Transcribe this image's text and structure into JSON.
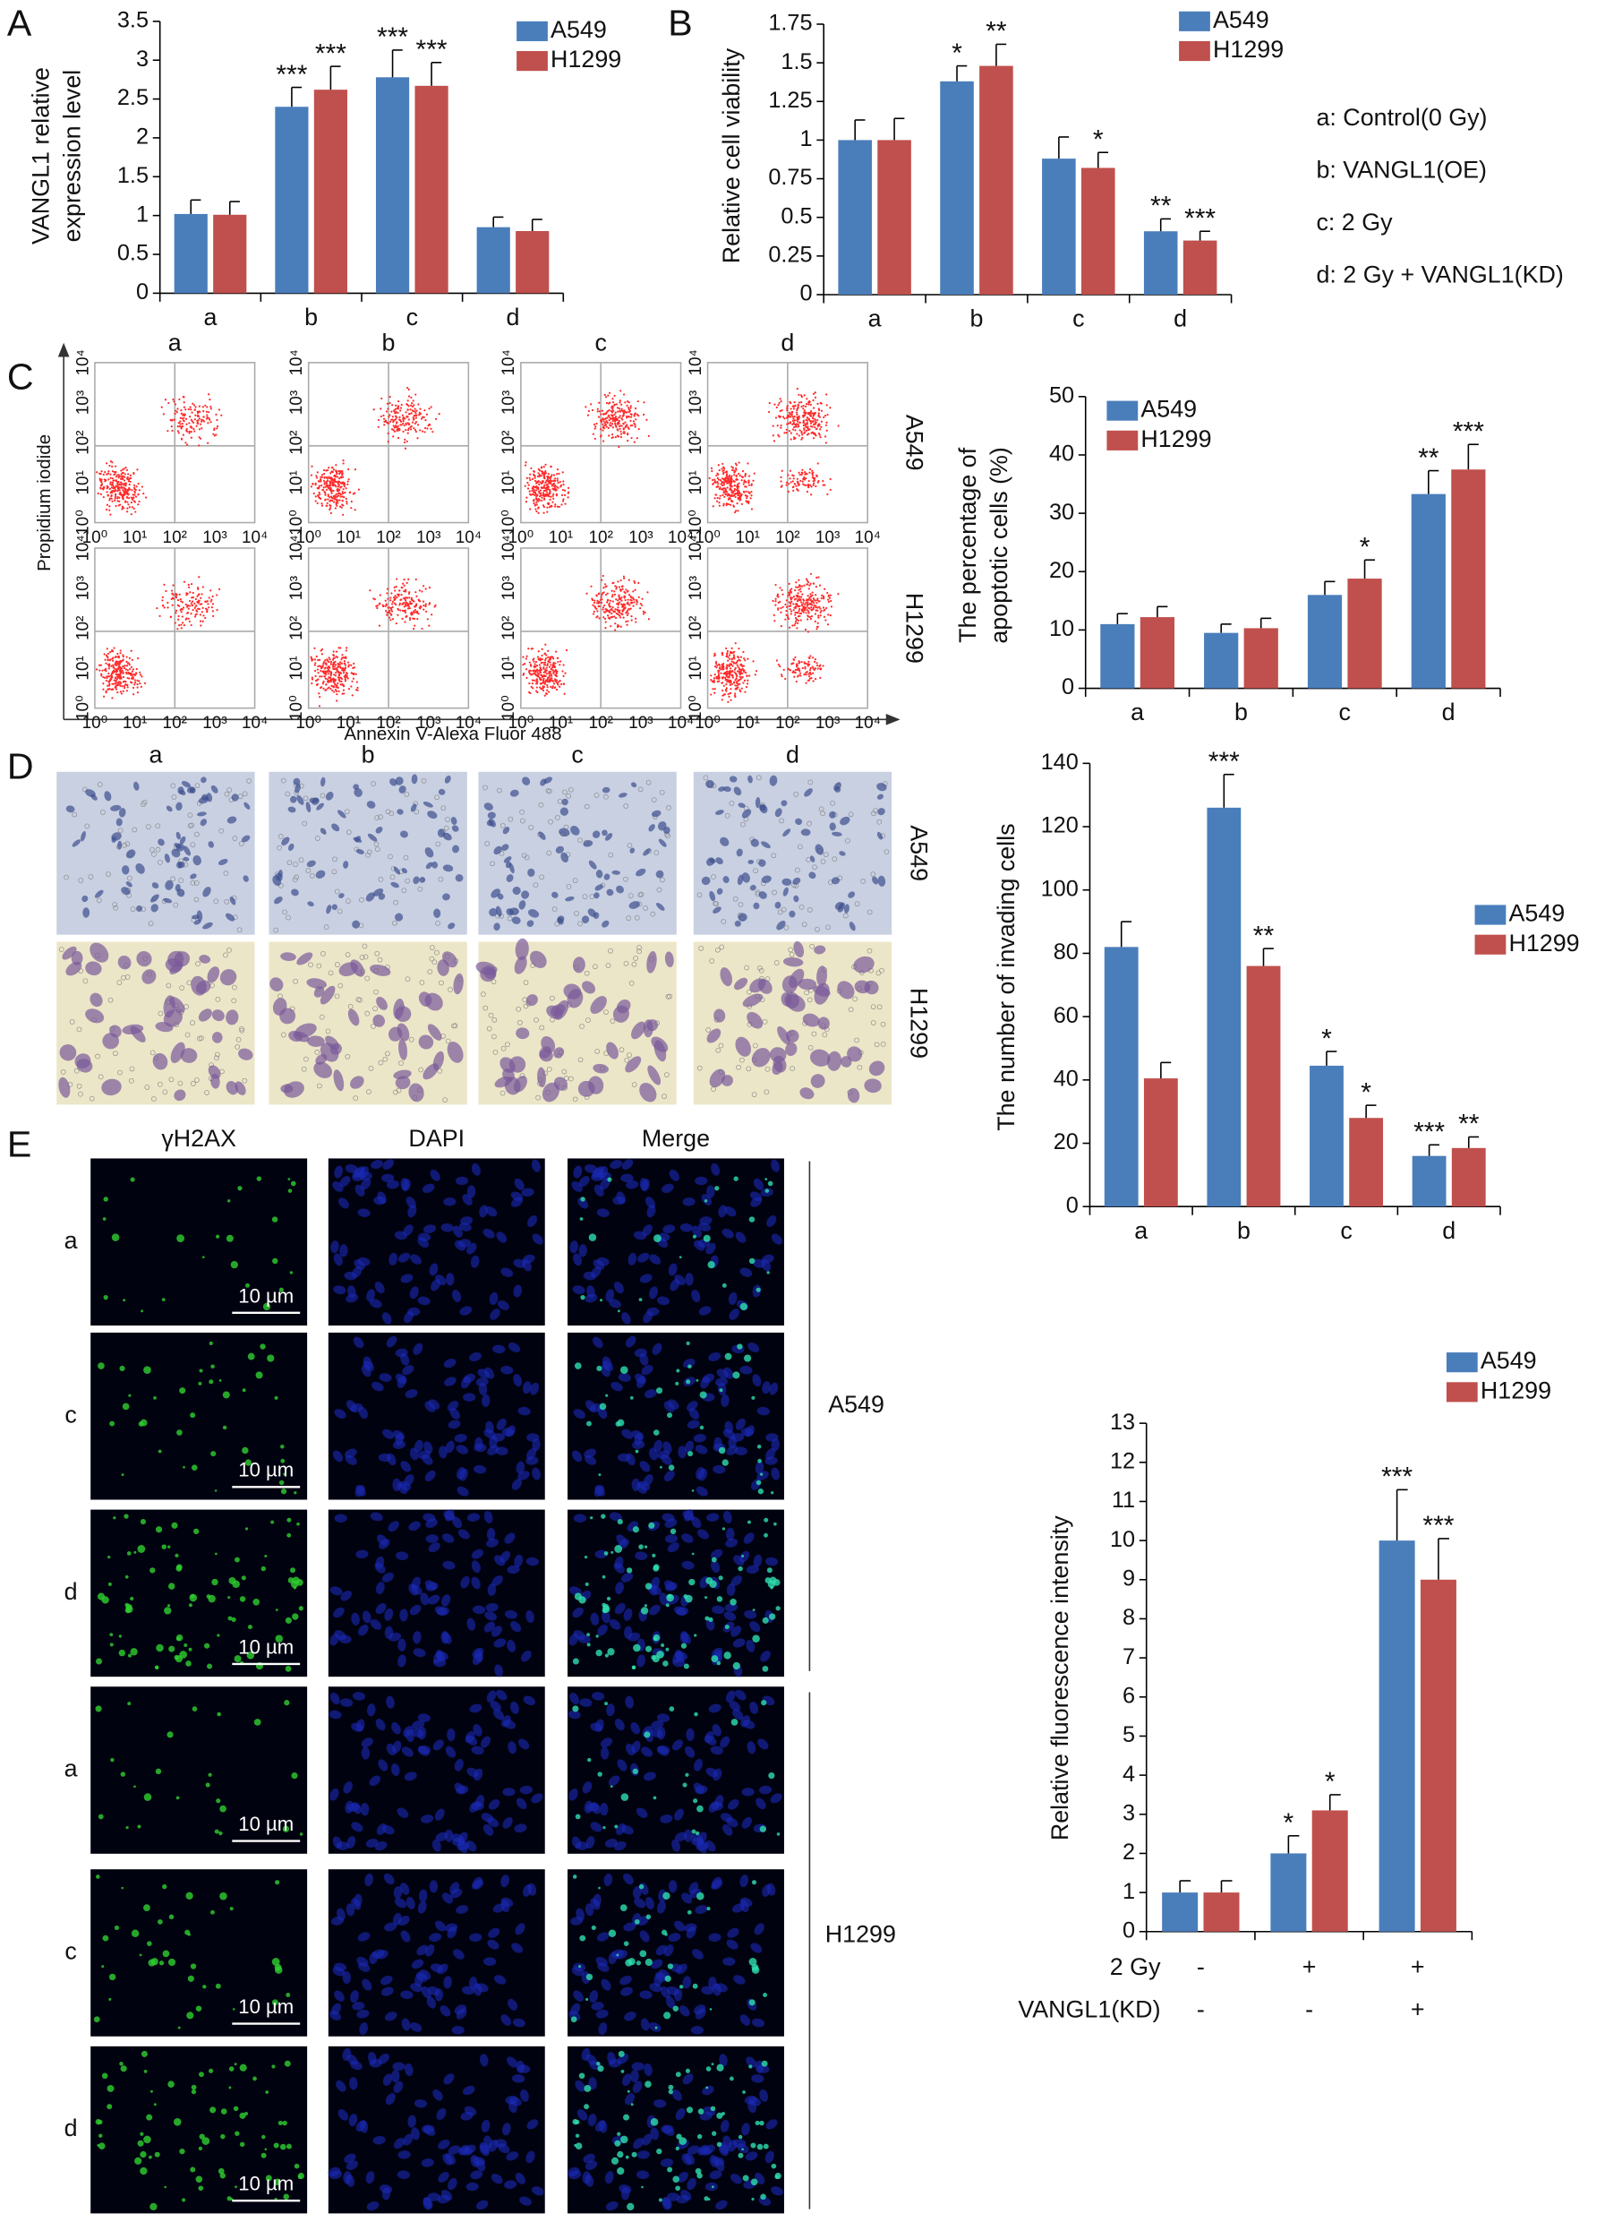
{
  "panel_labels": [
    "A",
    "B",
    "C",
    "D",
    "E"
  ],
  "legend_key": [
    "a: Control(0 Gy)",
    "b: VANGL1(OE)",
    "c: 2 Gy",
    "d:  2 Gy + VANGL1(KD)"
  ],
  "flow": {
    "columns": [
      "a",
      "b",
      "c",
      "d"
    ],
    "rows": [
      "A549",
      "H1299"
    ],
    "ylabel": "Propidium iodide",
    "xlabel": "Annexin  V-Alexa Fluor 488",
    "ticks": [
      "10⁰",
      "10¹",
      "10²",
      "10³",
      "10⁴"
    ]
  },
  "invasion": {
    "columns": [
      "a",
      "b",
      "c",
      "d"
    ],
    "rows": [
      "A549",
      "H1299"
    ]
  },
  "immunofluorescence": {
    "columns": [
      "γH2AX",
      "DAPI",
      "Merge"
    ],
    "rows": [
      "a",
      "c",
      "d",
      "a",
      "c",
      "d"
    ],
    "scale_bar": "10 µm",
    "cell_lines": [
      "A549",
      "H1299"
    ]
  },
  "chart_data": [
    {
      "type": "bar",
      "ylabel": [
        "VANGL1 relative",
        "expression level"
      ],
      "categories": [
        "a",
        "b",
        "c",
        "d"
      ],
      "ylim": [
        0,
        3.5
      ],
      "yticks": [
        0,
        0.5,
        1,
        1.5,
        2,
        2.5,
        3,
        3.5
      ],
      "series": [
        {
          "name": "A549",
          "color": "#4a7ebb",
          "values": [
            1.02,
            2.4,
            2.78,
            0.85
          ],
          "errors": [
            0.18,
            0.25,
            0.35,
            0.13
          ],
          "annotations": [
            null,
            "***",
            "***",
            null
          ]
        },
        {
          "name": "H1299",
          "color": "#c0504d",
          "values": [
            1.01,
            2.62,
            2.67,
            0.8
          ],
          "errors": [
            0.17,
            0.3,
            0.3,
            0.15
          ],
          "annotations": [
            null,
            "***",
            "***",
            null
          ]
        }
      ]
    },
    {
      "type": "bar",
      "ylabel": "Relative cell viability",
      "categories": [
        "a",
        "b",
        "c",
        "d"
      ],
      "ylim": [
        0,
        1.75
      ],
      "yticks": [
        0,
        0.25,
        0.5,
        0.75,
        1,
        1.25,
        1.5,
        1.75
      ],
      "series": [
        {
          "name": "A549",
          "color": "#4a7ebb",
          "values": [
            1.0,
            1.38,
            0.88,
            0.41
          ],
          "errors": [
            0.13,
            0.1,
            0.14,
            0.08
          ],
          "annotations": [
            null,
            "*",
            null,
            "**"
          ]
        },
        {
          "name": "H1299",
          "color": "#c0504d",
          "values": [
            1.0,
            1.48,
            0.82,
            0.35
          ],
          "errors": [
            0.14,
            0.14,
            0.1,
            0.06
          ],
          "annotations": [
            null,
            "**",
            "*",
            "***"
          ]
        }
      ]
    },
    {
      "type": "bar",
      "ylabel": [
        "The percentage of",
        "apoptotic cells (%)"
      ],
      "categories": [
        "a",
        "b",
        "c",
        "d"
      ],
      "ylim": [
        0,
        50
      ],
      "yticks": [
        0,
        10,
        20,
        30,
        40,
        50
      ],
      "series": [
        {
          "name": "A549",
          "color": "#4a7ebb",
          "values": [
            11,
            9.5,
            16,
            33.3
          ],
          "errors": [
            1.8,
            1.5,
            2.3,
            4
          ],
          "annotations": [
            null,
            null,
            null,
            "**"
          ]
        },
        {
          "name": "H1299",
          "color": "#c0504d",
          "values": [
            12.2,
            10.3,
            18.8,
            37.5
          ],
          "errors": [
            1.8,
            1.7,
            3.2,
            4.3
          ],
          "annotations": [
            null,
            null,
            "*",
            "***"
          ]
        }
      ]
    },
    {
      "type": "bar",
      "ylabel": "The number of invading cells",
      "categories": [
        "a",
        "b",
        "c",
        "d"
      ],
      "ylim": [
        0,
        140
      ],
      "yticks": [
        0,
        20,
        40,
        60,
        80,
        100,
        120,
        140
      ],
      "series": [
        {
          "name": "A549",
          "color": "#4a7ebb",
          "values": [
            82,
            126,
            44.5,
            16
          ],
          "errors": [
            8,
            10.5,
            4.5,
            3.5
          ],
          "annotations": [
            null,
            "***",
            "*",
            "***"
          ]
        },
        {
          "name": "H1299",
          "color": "#c0504d",
          "values": [
            40.5,
            76,
            28,
            18.5
          ],
          "errors": [
            5,
            5.5,
            4,
            3.5
          ],
          "annotations": [
            null,
            "**",
            "*",
            "**"
          ]
        }
      ]
    },
    {
      "type": "bar",
      "ylabel": "Relative fluorescence intensity",
      "category_rows": [
        {
          "label": "2 Gy",
          "values": [
            "-",
            "+",
            "+"
          ]
        },
        {
          "label": "VANGL1(KD)",
          "values": [
            "-",
            "-",
            "+"
          ]
        }
      ],
      "ylim": [
        0,
        13
      ],
      "yticks": [
        0,
        1,
        2,
        3,
        4,
        5,
        6,
        7,
        8,
        9,
        10,
        11,
        12,
        13
      ],
      "series": [
        {
          "name": "A549",
          "color": "#4a7ebb",
          "values": [
            1.0,
            2.0,
            10.0
          ],
          "errors": [
            0.3,
            0.45,
            1.3
          ],
          "annotations": [
            null,
            "*",
            "***"
          ]
        },
        {
          "name": "H1299",
          "color": "#c0504d",
          "values": [
            1.0,
            3.1,
            9.0
          ],
          "errors": [
            0.3,
            0.4,
            1.05
          ],
          "annotations": [
            null,
            "*",
            "***"
          ]
        }
      ]
    }
  ]
}
